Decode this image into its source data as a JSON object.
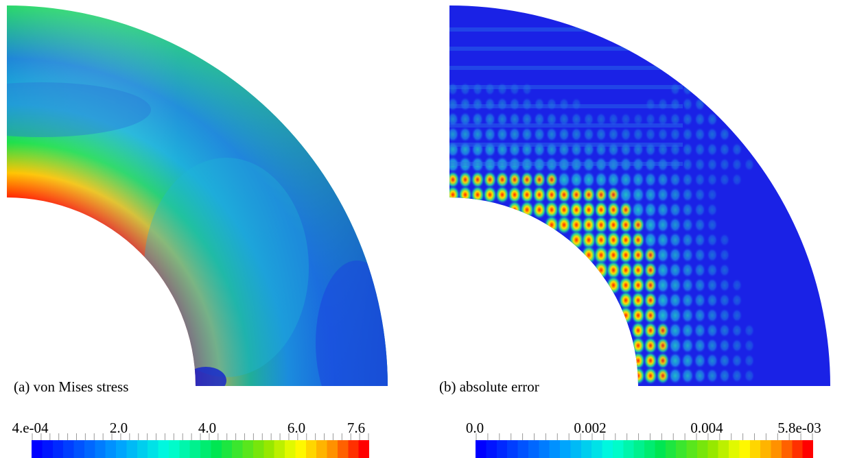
{
  "panels": [
    {
      "caption": "(a) von Mises stress",
      "colorbar": {
        "colormap": "rainbow",
        "min": 0.0004,
        "max": 7.6,
        "tick_labels": [
          "4.e-04",
          "2.0",
          "4.0",
          "6.0",
          "7.6"
        ],
        "tick_values": [
          0.0004,
          2.0,
          4.0,
          6.0,
          7.6
        ]
      }
    },
    {
      "caption": "(b) absolute error",
      "colorbar": {
        "colormap": "rainbow",
        "min": 0.0,
        "max": 0.0058,
        "tick_labels": [
          "0.0",
          "0.002",
          "0.004",
          "5.8e-03"
        ],
        "tick_values": [
          0.0,
          0.002,
          0.004,
          0.0058
        ]
      }
    }
  ],
  "chart_data": [
    {
      "type": "heatmap",
      "title": "(a) von Mises stress",
      "domain": "quarter annulus",
      "colorbar_range": [
        0.0004,
        7.6
      ],
      "colorbar_ticks": [
        "4.e-04",
        "2.0",
        "4.0",
        "6.0",
        "7.6"
      ]
    },
    {
      "type": "heatmap",
      "title": "(b) absolute error",
      "domain": "quarter annulus",
      "colorbar_range": [
        0.0,
        0.0058
      ],
      "colorbar_ticks": [
        "0.0",
        "0.002",
        "0.004",
        "5.8e-03"
      ]
    }
  ]
}
